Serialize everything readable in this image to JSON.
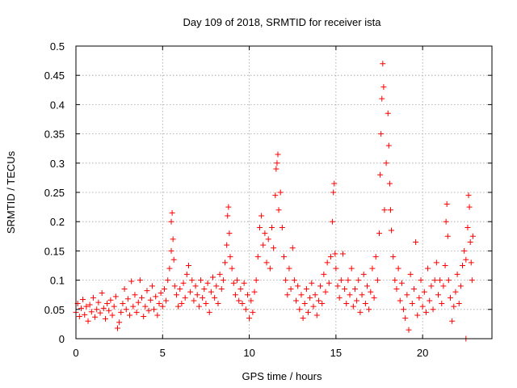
{
  "chart_data": {
    "type": "scatter",
    "title": "Day 109 of 2018, SRMTID for receiver ista",
    "xlabel": "GPS time / hours",
    "ylabel": "SRMTID / TECUs",
    "xlim": [
      0,
      24
    ],
    "ylim": [
      0,
      0.5
    ],
    "xticks": [
      0,
      5,
      10,
      15,
      20
    ],
    "yticks": [
      0,
      0.05,
      0.1,
      0.15,
      0.2,
      0.25,
      0.3,
      0.35,
      0.4,
      0.45,
      0.5
    ],
    "grid": true,
    "marker": "+",
    "series_color": "#ff0000",
    "series": [
      {
        "name": "SRMTID",
        "points": [
          [
            0.0,
            0.045
          ],
          [
            0.1,
            0.06
          ],
          [
            0.2,
            0.038
          ],
          [
            0.3,
            0.052
          ],
          [
            0.4,
            0.067
          ],
          [
            0.5,
            0.041
          ],
          [
            0.6,
            0.055
          ],
          [
            0.7,
            0.03
          ],
          [
            0.8,
            0.058
          ],
          [
            0.9,
            0.046
          ],
          [
            1.0,
            0.07
          ],
          [
            1.1,
            0.037
          ],
          [
            1.2,
            0.05
          ],
          [
            1.3,
            0.062
          ],
          [
            1.4,
            0.044
          ],
          [
            1.5,
            0.078
          ],
          [
            1.6,
            0.052
          ],
          [
            1.7,
            0.034
          ],
          [
            1.8,
            0.06
          ],
          [
            1.9,
            0.048
          ],
          [
            2.0,
            0.066
          ],
          [
            2.1,
            0.04
          ],
          [
            2.2,
            0.055
          ],
          [
            2.3,
            0.072
          ],
          [
            2.4,
            0.018
          ],
          [
            2.5,
            0.028
          ],
          [
            2.6,
            0.045
          ],
          [
            2.7,
            0.06
          ],
          [
            2.8,
            0.085
          ],
          [
            2.9,
            0.05
          ],
          [
            3.0,
            0.068
          ],
          [
            3.1,
            0.04
          ],
          [
            3.2,
            0.098
          ],
          [
            3.3,
            0.055
          ],
          [
            3.4,
            0.075
          ],
          [
            3.5,
            0.045
          ],
          [
            3.6,
            0.062
          ],
          [
            3.7,
            0.1
          ],
          [
            3.8,
            0.07
          ],
          [
            3.9,
            0.038
          ],
          [
            4.0,
            0.055
          ],
          [
            4.1,
            0.082
          ],
          [
            4.2,
            0.048
          ],
          [
            4.3,
            0.066
          ],
          [
            4.4,
            0.09
          ],
          [
            4.5,
            0.05
          ],
          [
            4.6,
            0.072
          ],
          [
            4.7,
            0.04
          ],
          [
            4.8,
            0.06
          ],
          [
            4.9,
            0.078
          ],
          [
            5.0,
            0.055
          ],
          [
            5.1,
            0.085
          ],
          [
            5.2,
            0.065
          ],
          [
            5.3,
            0.1
          ],
          [
            5.4,
            0.12
          ],
          [
            5.5,
            0.15
          ],
          [
            5.5,
            0.2
          ],
          [
            5.55,
            0.215
          ],
          [
            5.6,
            0.17
          ],
          [
            5.65,
            0.135
          ],
          [
            5.7,
            0.09
          ],
          [
            5.8,
            0.075
          ],
          [
            5.9,
            0.055
          ],
          [
            6.0,
            0.085
          ],
          [
            6.1,
            0.06
          ],
          [
            6.2,
            0.095
          ],
          [
            6.3,
            0.07
          ],
          [
            6.4,
            0.11
          ],
          [
            6.5,
            0.125
          ],
          [
            6.6,
            0.08
          ],
          [
            6.7,
            0.1
          ],
          [
            6.8,
            0.065
          ],
          [
            6.9,
            0.09
          ],
          [
            7.0,
            0.075
          ],
          [
            7.1,
            0.055
          ],
          [
            7.2,
            0.1
          ],
          [
            7.3,
            0.07
          ],
          [
            7.4,
            0.085
          ],
          [
            7.5,
            0.06
          ],
          [
            7.6,
            0.095
          ],
          [
            7.7,
            0.045
          ],
          [
            7.8,
            0.08
          ],
          [
            7.9,
            0.105
          ],
          [
            8.0,
            0.07
          ],
          [
            8.1,
            0.09
          ],
          [
            8.2,
            0.06
          ],
          [
            8.3,
            0.11
          ],
          [
            8.4,
            0.085
          ],
          [
            8.5,
            0.1
          ],
          [
            8.6,
            0.13
          ],
          [
            8.7,
            0.16
          ],
          [
            8.75,
            0.21
          ],
          [
            8.8,
            0.225
          ],
          [
            8.85,
            0.18
          ],
          [
            8.9,
            0.14
          ],
          [
            9.0,
            0.12
          ],
          [
            9.1,
            0.095
          ],
          [
            9.2,
            0.075
          ],
          [
            9.3,
            0.1
          ],
          [
            9.4,
            0.065
          ],
          [
            9.5,
            0.085
          ],
          [
            9.6,
            0.06
          ],
          [
            9.7,
            0.095
          ],
          [
            9.8,
            0.05
          ],
          [
            9.9,
            0.075
          ],
          [
            10.0,
            0.035
          ],
          [
            10.1,
            0.065
          ],
          [
            10.2,
            0.045
          ],
          [
            10.3,
            0.08
          ],
          [
            10.4,
            0.1
          ],
          [
            10.5,
            0.14
          ],
          [
            10.6,
            0.19
          ],
          [
            10.7,
            0.21
          ],
          [
            10.8,
            0.16
          ],
          [
            10.9,
            0.18
          ],
          [
            11.0,
            0.13
          ],
          [
            11.1,
            0.17
          ],
          [
            11.2,
            0.12
          ],
          [
            11.3,
            0.19
          ],
          [
            11.4,
            0.155
          ],
          [
            11.5,
            0.245
          ],
          [
            11.55,
            0.29
          ],
          [
            11.6,
            0.3
          ],
          [
            11.65,
            0.315
          ],
          [
            11.7,
            0.22
          ],
          [
            11.8,
            0.25
          ],
          [
            11.9,
            0.19
          ],
          [
            12.0,
            0.14
          ],
          [
            12.1,
            0.1
          ],
          [
            12.2,
            0.075
          ],
          [
            12.3,
            0.12
          ],
          [
            12.4,
            0.085
          ],
          [
            12.5,
            0.155
          ],
          [
            12.6,
            0.1
          ],
          [
            12.7,
            0.065
          ],
          [
            12.8,
            0.09
          ],
          [
            12.9,
            0.05
          ],
          [
            13.0,
            0.075
          ],
          [
            13.1,
            0.035
          ],
          [
            13.2,
            0.06
          ],
          [
            13.3,
            0.085
          ],
          [
            13.4,
            0.045
          ],
          [
            13.5,
            0.07
          ],
          [
            13.6,
            0.095
          ],
          [
            13.7,
            0.055
          ],
          [
            13.8,
            0.075
          ],
          [
            13.9,
            0.04
          ],
          [
            14.0,
            0.065
          ],
          [
            14.1,
            0.09
          ],
          [
            14.2,
            0.06
          ],
          [
            14.3,
            0.11
          ],
          [
            14.4,
            0.08
          ],
          [
            14.5,
            0.13
          ],
          [
            14.6,
            0.095
          ],
          [
            14.7,
            0.14
          ],
          [
            14.8,
            0.2
          ],
          [
            14.85,
            0.25
          ],
          [
            14.9,
            0.265
          ],
          [
            14.95,
            0.145
          ],
          [
            15.0,
            0.12
          ],
          [
            15.1,
            0.09
          ],
          [
            15.2,
            0.07
          ],
          [
            15.3,
            0.1
          ],
          [
            15.4,
            0.145
          ],
          [
            15.5,
            0.085
          ],
          [
            15.6,
            0.06
          ],
          [
            15.7,
            0.1
          ],
          [
            15.8,
            0.075
          ],
          [
            15.9,
            0.12
          ],
          [
            16.0,
            0.055
          ],
          [
            16.1,
            0.085
          ],
          [
            16.2,
            0.065
          ],
          [
            16.3,
            0.1
          ],
          [
            16.4,
            0.045
          ],
          [
            16.5,
            0.075
          ],
          [
            16.6,
            0.11
          ],
          [
            16.7,
            0.06
          ],
          [
            16.8,
            0.09
          ],
          [
            16.9,
            0.05
          ],
          [
            17.0,
            0.08
          ],
          [
            17.1,
            0.12
          ],
          [
            17.2,
            0.07
          ],
          [
            17.3,
            0.14
          ],
          [
            17.4,
            0.1
          ],
          [
            17.5,
            0.18
          ],
          [
            17.55,
            0.28
          ],
          [
            17.6,
            0.35
          ],
          [
            17.65,
            0.41
          ],
          [
            17.7,
            0.47
          ],
          [
            17.75,
            0.43
          ],
          [
            17.8,
            0.22
          ],
          [
            17.9,
            0.3
          ],
          [
            18.0,
            0.385
          ],
          [
            18.05,
            0.33
          ],
          [
            18.1,
            0.265
          ],
          [
            18.15,
            0.22
          ],
          [
            18.2,
            0.185
          ],
          [
            18.3,
            0.14
          ],
          [
            18.4,
            0.1
          ],
          [
            18.5,
            0.085
          ],
          [
            18.6,
            0.12
          ],
          [
            18.7,
            0.065
          ],
          [
            18.8,
            0.095
          ],
          [
            18.9,
            0.05
          ],
          [
            19.0,
            0.035
          ],
          [
            19.1,
            0.075
          ],
          [
            19.2,
            0.015
          ],
          [
            19.3,
            0.11
          ],
          [
            19.4,
            0.06
          ],
          [
            19.5,
            0.085
          ],
          [
            19.6,
            0.165
          ],
          [
            19.7,
            0.04
          ],
          [
            19.8,
            0.07
          ],
          [
            19.9,
            0.1
          ],
          [
            20.0,
            0.055
          ],
          [
            20.1,
            0.08
          ],
          [
            20.2,
            0.045
          ],
          [
            20.3,
            0.12
          ],
          [
            20.4,
            0.065
          ],
          [
            20.5,
            0.09
          ],
          [
            20.6,
            0.05
          ],
          [
            20.7,
            0.1
          ],
          [
            20.8,
            0.13
          ],
          [
            20.9,
            0.075
          ],
          [
            21.0,
            0.1
          ],
          [
            21.1,
            0.06
          ],
          [
            21.2,
            0.09
          ],
          [
            21.3,
            0.125
          ],
          [
            21.35,
            0.2
          ],
          [
            21.4,
            0.23
          ],
          [
            21.45,
            0.175
          ],
          [
            21.5,
            0.1
          ],
          [
            21.6,
            0.07
          ],
          [
            21.7,
            0.03
          ],
          [
            21.8,
            0.055
          ],
          [
            21.9,
            0.08
          ],
          [
            22.0,
            0.11
          ],
          [
            22.1,
            0.06
          ],
          [
            22.2,
            0.09
          ],
          [
            22.3,
            0.125
          ],
          [
            22.4,
            0.15
          ],
          [
            22.5,
            0.135
          ],
          [
            22.6,
            0.19
          ],
          [
            22.65,
            0.245
          ],
          [
            22.7,
            0.225
          ],
          [
            22.75,
            0.165
          ],
          [
            22.8,
            0.13
          ],
          [
            22.85,
            0.1
          ],
          [
            22.9,
            0.175
          ],
          [
            22.5,
            0.0
          ]
        ]
      }
    ]
  }
}
